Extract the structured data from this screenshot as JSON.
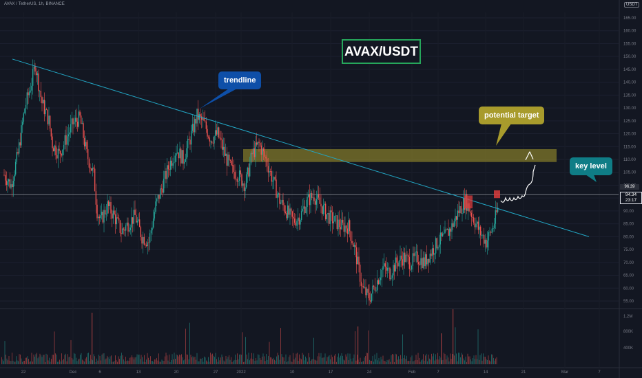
{
  "header": {
    "symbol_line": "AVAX / TetherUS, 1h, BINANCE"
  },
  "currency_badge": "USDT",
  "chart_data": {
    "type": "candlestick",
    "title": "AVAX/USDT",
    "price_axis": {
      "ticks": [
        "165.00",
        "160.00",
        "155.00",
        "150.00",
        "145.00",
        "140.00",
        "135.00",
        "130.00",
        "125.00",
        "120.00",
        "115.00",
        "110.00",
        "105.00",
        "100.00",
        "95.00",
        "90.00",
        "85.00",
        "80.00",
        "75.00",
        "70.00",
        "65.00",
        "60.00",
        "55.00"
      ],
      "range": [
        55,
        165
      ]
    },
    "volume_axis": {
      "ticks": [
        "1.2M",
        "800K",
        "400K"
      ]
    },
    "time_axis": {
      "ticks": [
        "22",
        "Dec",
        "6",
        "13",
        "20",
        "27",
        "2022",
        "10",
        "17",
        "24",
        "Feb",
        "7",
        "14",
        "21",
        "Mar",
        "7"
      ]
    },
    "key_level_price": "96.39",
    "current_price": "94.34",
    "countdown": "23:17",
    "price_path": [
      [
        0,
        104
      ],
      [
        2,
        100
      ],
      [
        4,
        112
      ],
      [
        6,
        130
      ],
      [
        8,
        140
      ],
      [
        9,
        147
      ],
      [
        11,
        132
      ],
      [
        13,
        125
      ],
      [
        14,
        116
      ],
      [
        16,
        112
      ],
      [
        18,
        118
      ],
      [
        20,
        124
      ],
      [
        22,
        126
      ],
      [
        24,
        112
      ],
      [
        26,
        104
      ],
      [
        27,
        90
      ],
      [
        28,
        86
      ],
      [
        30,
        92
      ],
      [
        32,
        88
      ],
      [
        34,
        82
      ],
      [
        36,
        85
      ],
      [
        38,
        88
      ],
      [
        40,
        80
      ],
      [
        42,
        78
      ],
      [
        44,
        92
      ],
      [
        46,
        100
      ],
      [
        48,
        108
      ],
      [
        50,
        114
      ],
      [
        52,
        110
      ],
      [
        54,
        118
      ],
      [
        56,
        127
      ],
      [
        58,
        124
      ],
      [
        60,
        118
      ],
      [
        62,
        120
      ],
      [
        64,
        112
      ],
      [
        66,
        106
      ],
      [
        68,
        104
      ],
      [
        70,
        100
      ],
      [
        72,
        112
      ],
      [
        74,
        116
      ],
      [
        76,
        110
      ],
      [
        78,
        102
      ],
      [
        80,
        94
      ],
      [
        82,
        90
      ],
      [
        84,
        86
      ],
      [
        86,
        88
      ],
      [
        88,
        94
      ],
      [
        90,
        96
      ],
      [
        92,
        92
      ],
      [
        94,
        88
      ],
      [
        96,
        86
      ],
      [
        98,
        84
      ],
      [
        100,
        84
      ],
      [
        102,
        74
      ],
      [
        104,
        60
      ],
      [
        106,
        56
      ],
      [
        108,
        62
      ],
      [
        110,
        68
      ],
      [
        112,
        66
      ],
      [
        114,
        70
      ],
      [
        116,
        72
      ],
      [
        118,
        70
      ],
      [
        120,
        72
      ],
      [
        122,
        70
      ],
      [
        124,
        74
      ],
      [
        126,
        78
      ],
      [
        128,
        80
      ],
      [
        130,
        84
      ],
      [
        132,
        90
      ],
      [
        134,
        94
      ],
      [
        136,
        88
      ],
      [
        138,
        82
      ],
      [
        140,
        78
      ],
      [
        142,
        84
      ],
      [
        144,
        94
      ]
    ],
    "trendline": {
      "start": [
        0,
        149
      ],
      "end": [
        175,
        80
      ]
    },
    "target_zone": {
      "low": 109,
      "high": 114
    },
    "volume_bars_count": 160,
    "annotations": {
      "title": "AVAX/USDT",
      "trendline_label": "trendline",
      "target_label": "potential target",
      "key_level_label": "key level"
    }
  }
}
